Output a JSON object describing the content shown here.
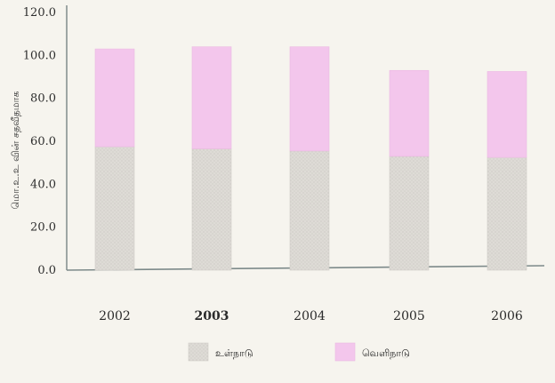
{
  "chart_data": {
    "type": "bar",
    "stacked": true,
    "categories": [
      "2002",
      "2003",
      "2004",
      "2005",
      "2006"
    ],
    "series": [
      {
        "name": "உள்நாடு",
        "values": [
          57.5,
          56.5,
          55.5,
          53.0,
          52.5
        ],
        "color": "#d9d6d1"
      },
      {
        "name": "வெளிநாடு",
        "values": [
          45.5,
          47.5,
          48.5,
          40.0,
          40.0
        ],
        "color": "#f3c6ec"
      }
    ],
    "ylabel": "மொ.உ.உ வின் சதவீதமாக",
    "ylim": [
      0,
      120
    ],
    "yticks": [
      "0.0",
      "20.0",
      "40.0",
      "60.0",
      "80.0",
      "100.0",
      "120.0"
    ],
    "grid": false,
    "legend_position": "bottom"
  }
}
